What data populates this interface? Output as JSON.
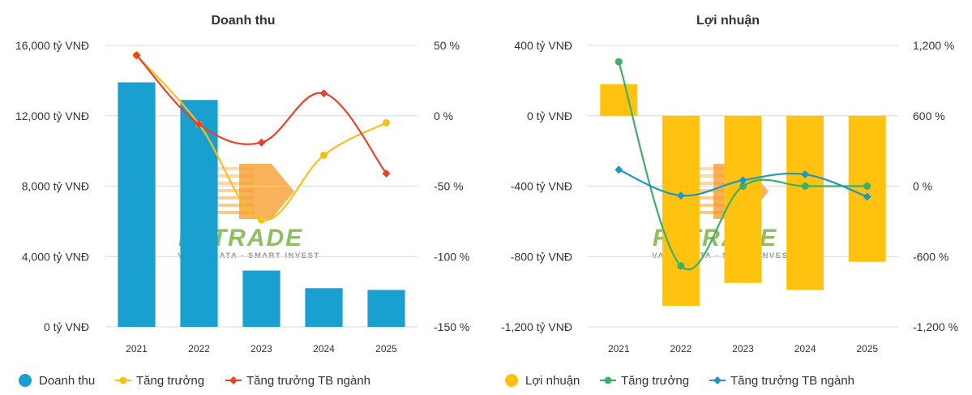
{
  "colors": {
    "revenue_bar": "#1a9fd1",
    "revenue_growth": "#f7c019",
    "revenue_industry": "#e8412c",
    "profit_bar": "#ffc20e",
    "profit_growth": "#3fae6a",
    "profit_industry": "#1f96c4",
    "grid": "#d9d9d9",
    "watermark_green": "#7cb342",
    "watermark_orange": "#f59a23"
  },
  "watermark": {
    "logo": "FIITRADE",
    "tagline": "VALUE DATA - SMART INVEST"
  },
  "chart_data": [
    {
      "type": "bar",
      "title": "Doanh thu",
      "categories": [
        "2021",
        "2022",
        "2023",
        "2024",
        "2025"
      ],
      "y_ticks": [
        "16,000 tỷ VNĐ",
        "12,000 tỷ VNĐ",
        "8,000 tỷ VNĐ",
        "4,000 tỷ VNĐ",
        "0 tỷ VNĐ"
      ],
      "y_right_ticks": [
        "50 %",
        "0 %",
        "-50 %",
        "-100 %",
        "-150 %"
      ],
      "ylim": [
        0,
        16000
      ],
      "y2lim": [
        -150,
        50
      ],
      "grid": true,
      "legend_position": "bottom",
      "series": [
        {
          "name": "Doanh thu",
          "kind": "bar",
          "axis": "left",
          "values": [
            13900,
            12900,
            3200,
            2200,
            2100
          ]
        },
        {
          "name": "Tăng trưởng",
          "kind": "line",
          "axis": "right",
          "values": [
            43,
            -6,
            -74,
            -28,
            -5
          ]
        },
        {
          "name": "Tăng trưởng TB ngành",
          "kind": "line",
          "axis": "right",
          "values": [
            43,
            -6,
            -19,
            16,
            -41
          ]
        }
      ]
    },
    {
      "type": "bar",
      "title": "Lợi nhuận",
      "categories": [
        "2021",
        "2022",
        "2023",
        "2024",
        "2025"
      ],
      "y_ticks": [
        "400 tỷ VNĐ",
        "0 tỷ VNĐ",
        "-400 tỷ VNĐ",
        "-800 tỷ VNĐ",
        "-1,200 tỷ VNĐ"
      ],
      "y_right_ticks": [
        "1,200 %",
        "600 %",
        "0 %",
        "-600 %",
        "-1,200 %"
      ],
      "ylim": [
        -1200,
        400
      ],
      "y2lim": [
        -1200,
        1200
      ],
      "grid": true,
      "legend_position": "bottom",
      "series": [
        {
          "name": "Lợi nhuận",
          "kind": "bar",
          "axis": "left",
          "values": [
            180,
            -1080,
            -950,
            -990,
            -830
          ]
        },
        {
          "name": "Tăng trưởng",
          "kind": "line",
          "axis": "right",
          "values": [
            1060,
            -680,
            0,
            0,
            0
          ]
        },
        {
          "name": "Tăng trưởng TB ngành",
          "kind": "line",
          "axis": "right",
          "values": [
            140,
            -80,
            50,
            100,
            -90
          ]
        }
      ]
    }
  ]
}
